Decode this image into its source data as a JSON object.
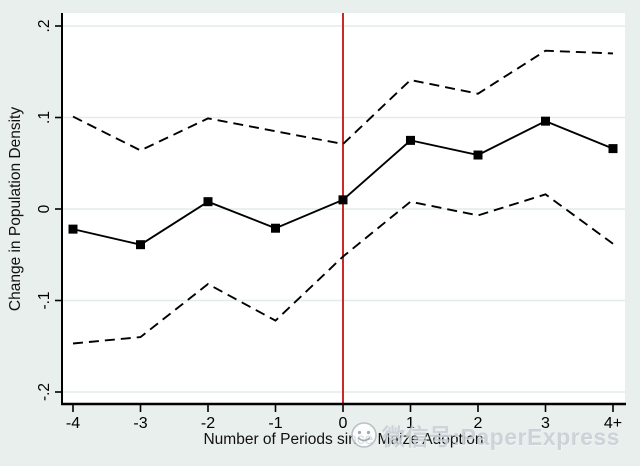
{
  "figure": {
    "background_color": "#e9efed",
    "plot_background_color": "#ffffff",
    "grid_color": "#e3ebec",
    "axis_color": "#000000"
  },
  "chart_data": {
    "type": "line",
    "title": "",
    "xlabel": "Number of Periods since Maize Adoption",
    "ylabel": "Change in Population Density",
    "categories": [
      "-4",
      "-3",
      "-2",
      "-1",
      "0",
      "1",
      "2",
      "3",
      "4+"
    ],
    "y_ticks": [
      {
        "label": ".2",
        "value": 0.2
      },
      {
        "label": ".1",
        "value": 0.1
      },
      {
        "label": "0",
        "value": 0
      },
      {
        "label": "-.1",
        "value": -0.1
      },
      {
        "label": "-.2",
        "value": -0.2
      }
    ],
    "ylim": [
      -0.2,
      0.2
    ],
    "grid": "horizontal",
    "legend_position": "none",
    "series": [
      {
        "name": "point-estimate",
        "style": "solid",
        "marker": "square",
        "color": "#000000",
        "values": [
          -0.022,
          -0.039,
          0.008,
          -0.021,
          0.01,
          0.075,
          0.059,
          0.096,
          0.066
        ]
      },
      {
        "name": "upper-confidence-bound",
        "style": "dashed",
        "marker": "none",
        "color": "#000000",
        "values": [
          0.101,
          0.064,
          0.099,
          0.085,
          0.071,
          0.141,
          0.126,
          0.173,
          0.17
        ]
      },
      {
        "name": "lower-confidence-bound",
        "style": "dashed",
        "marker": "none",
        "color": "#000000",
        "values": [
          -0.147,
          -0.14,
          -0.082,
          -0.122,
          -0.052,
          0.008,
          -0.007,
          0.016,
          -0.038
        ]
      }
    ],
    "reference_line": {
      "axis": "x",
      "at_category": "0",
      "color": "#cb2828"
    }
  },
  "watermark": {
    "icon": "smiley-face-icon",
    "text": "微信号:PaperExpress",
    "color": "#b2bcc3"
  }
}
